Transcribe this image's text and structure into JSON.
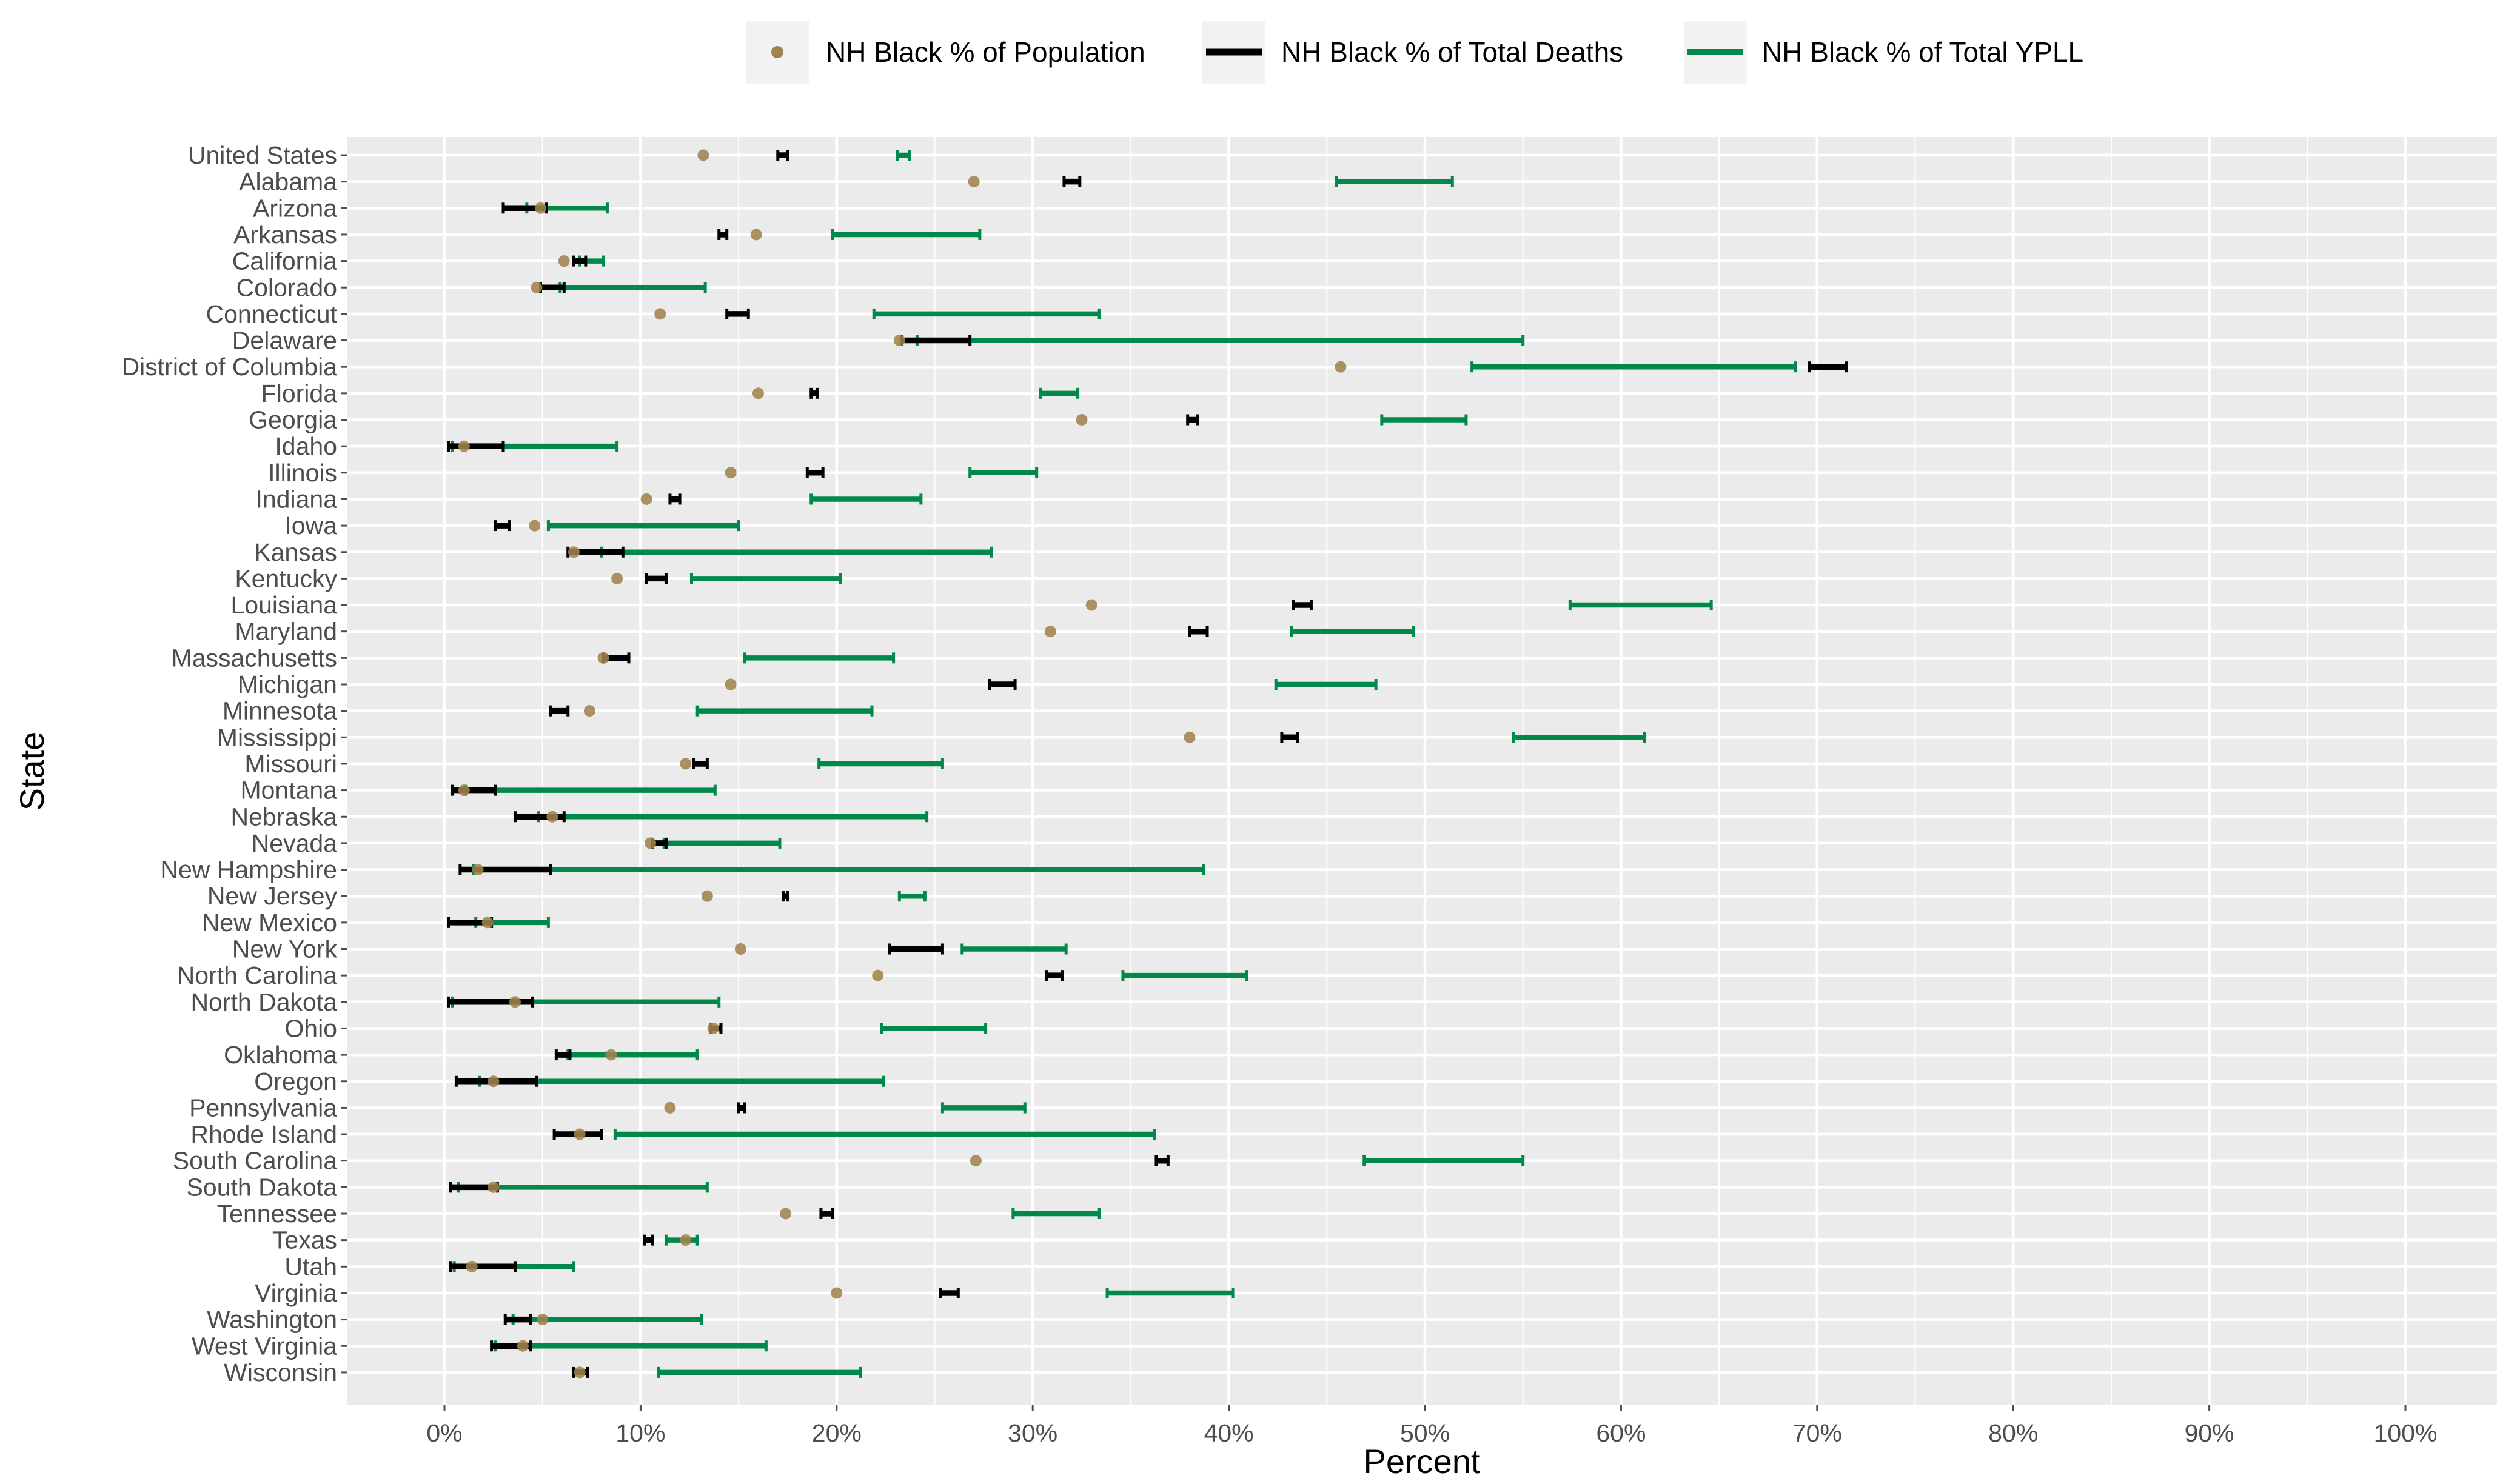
{
  "colors": {
    "population": "#a0834d",
    "deaths": "#000000",
    "ypll": "#00894a",
    "panel": "#ebebeb",
    "grid": "#ffffff",
    "tick": "#4d4d4d"
  },
  "chart_data": {
    "type": "range-dot",
    "xlabel": "Percent",
    "ylabel": "State",
    "xlim": [
      0,
      100
    ],
    "x_ticks": [
      "0%",
      "10%",
      "20%",
      "30%",
      "40%",
      "50%",
      "60%",
      "70%",
      "80%",
      "90%",
      "100%"
    ],
    "legend": {
      "position": "top",
      "entries": [
        {
          "key": "population",
          "label": "NH Black % of Population"
        },
        {
          "key": "deaths",
          "label": "NH Black % of Total Deaths"
        },
        {
          "key": "ypll",
          "label": "NH Black % of Total YPLL"
        }
      ]
    },
    "series": [
      {
        "state": "United States",
        "population": 13.2,
        "deaths": [
          17.0,
          17.5
        ],
        "ypll": [
          23.1,
          23.7
        ]
      },
      {
        "state": "Alabama",
        "population": 27.0,
        "deaths": [
          31.6,
          32.4
        ],
        "ypll": [
          45.5,
          51.4
        ]
      },
      {
        "state": "Arizona",
        "population": 4.9,
        "deaths": [
          3.0,
          5.2
        ],
        "ypll": [
          4.2,
          8.3
        ]
      },
      {
        "state": "Arkansas",
        "population": 15.9,
        "deaths": [
          14.0,
          14.4
        ],
        "ypll": [
          19.8,
          27.3
        ]
      },
      {
        "state": "California",
        "population": 6.1,
        "deaths": [
          6.6,
          7.2
        ],
        "ypll": [
          6.9,
          8.1
        ]
      },
      {
        "state": "Colorado",
        "population": 4.7,
        "deaths": [
          4.9,
          6.1
        ],
        "ypll": [
          5.9,
          13.3
        ]
      },
      {
        "state": "Connecticut",
        "population": 11.0,
        "deaths": [
          14.4,
          15.5
        ],
        "ypll": [
          21.9,
          33.4
        ]
      },
      {
        "state": "Delaware",
        "population": 23.2,
        "deaths": [
          23.3,
          26.8
        ],
        "ypll": [
          24.1,
          55.0
        ]
      },
      {
        "state": "District of Columbia",
        "population": 45.7,
        "deaths": [
          69.6,
          71.5
        ],
        "ypll": [
          52.4,
          68.9
        ]
      },
      {
        "state": "Florida",
        "population": 16.0,
        "deaths": [
          18.7,
          19.0
        ],
        "ypll": [
          30.4,
          32.3
        ]
      },
      {
        "state": "Georgia",
        "population": 32.5,
        "deaths": [
          37.9,
          38.4
        ],
        "ypll": [
          47.8,
          52.1
        ]
      },
      {
        "state": "Idaho",
        "population": 1.0,
        "deaths": [
          0.2,
          3.0
        ],
        "ypll": [
          0.4,
          8.8
        ]
      },
      {
        "state": "Illinois",
        "population": 14.6,
        "deaths": [
          18.5,
          19.3
        ],
        "ypll": [
          26.8,
          30.2
        ]
      },
      {
        "state": "Indiana",
        "population": 10.3,
        "deaths": [
          11.5,
          12.0
        ],
        "ypll": [
          18.7,
          24.3
        ]
      },
      {
        "state": "Iowa",
        "population": 4.6,
        "deaths": [
          2.6,
          3.3
        ],
        "ypll": [
          5.3,
          15.0
        ]
      },
      {
        "state": "Kansas",
        "population": 6.6,
        "deaths": [
          6.3,
          9.1
        ],
        "ypll": [
          8.0,
          27.9
        ]
      },
      {
        "state": "Kentucky",
        "population": 8.8,
        "deaths": [
          10.3,
          11.3
        ],
        "ypll": [
          12.6,
          20.2
        ]
      },
      {
        "state": "Louisiana",
        "population": 33.0,
        "deaths": [
          43.3,
          44.2
        ],
        "ypll": [
          57.4,
          64.6
        ]
      },
      {
        "state": "Maryland",
        "population": 30.9,
        "deaths": [
          38.0,
          38.9
        ],
        "ypll": [
          43.2,
          49.4
        ]
      },
      {
        "state": "Massachusetts",
        "population": 8.1,
        "deaths": [
          8.1,
          9.4
        ],
        "ypll": [
          15.3,
          22.9
        ]
      },
      {
        "state": "Michigan",
        "population": 14.6,
        "deaths": [
          27.8,
          29.1
        ],
        "ypll": [
          42.4,
          47.5
        ]
      },
      {
        "state": "Minnesota",
        "population": 7.4,
        "deaths": [
          5.4,
          6.3
        ],
        "ypll": [
          12.9,
          21.8
        ]
      },
      {
        "state": "Mississippi",
        "population": 38.0,
        "deaths": [
          42.7,
          43.5
        ],
        "ypll": [
          54.5,
          61.2
        ]
      },
      {
        "state": "Missouri",
        "population": 12.3,
        "deaths": [
          12.7,
          13.4
        ],
        "ypll": [
          19.1,
          25.4
        ]
      },
      {
        "state": "Montana",
        "population": 1.0,
        "deaths": [
          0.4,
          2.6
        ],
        "ypll": [
          1.1,
          13.8
        ]
      },
      {
        "state": "Nebraska",
        "population": 5.5,
        "deaths": [
          3.6,
          6.1
        ],
        "ypll": [
          4.8,
          24.6
        ]
      },
      {
        "state": "Nevada",
        "population": 10.5,
        "deaths": [
          10.6,
          11.3
        ],
        "ypll": [
          11.2,
          17.1
        ]
      },
      {
        "state": "New Hampshire",
        "population": 1.7,
        "deaths": [
          0.8,
          5.4
        ],
        "ypll": [
          1.5,
          38.7
        ]
      },
      {
        "state": "New Jersey",
        "population": 13.4,
        "deaths": [
          17.3,
          17.5
        ],
        "ypll": [
          23.2,
          24.5
        ]
      },
      {
        "state": "New Mexico",
        "population": 2.2,
        "deaths": [
          0.2,
          2.4
        ],
        "ypll": [
          1.6,
          5.3
        ]
      },
      {
        "state": "New York",
        "population": 15.1,
        "deaths": [
          22.7,
          25.4
        ],
        "ypll": [
          26.4,
          31.7
        ]
      },
      {
        "state": "North Carolina",
        "population": 22.1,
        "deaths": [
          30.7,
          31.5
        ],
        "ypll": [
          34.6,
          40.9
        ]
      },
      {
        "state": "North Dakota",
        "population": 3.6,
        "deaths": [
          0.2,
          4.5
        ],
        "ypll": [
          0.4,
          14.0
        ]
      },
      {
        "state": "Ohio",
        "population": 13.7,
        "deaths": [
          13.6,
          14.1
        ],
        "ypll": [
          22.3,
          27.6
        ]
      },
      {
        "state": "Oklahoma",
        "population": 8.5,
        "deaths": [
          5.7,
          6.4
        ],
        "ypll": [
          6.3,
          12.9
        ]
      },
      {
        "state": "Oregon",
        "population": 2.5,
        "deaths": [
          0.6,
          4.7
        ],
        "ypll": [
          1.8,
          22.4
        ]
      },
      {
        "state": "Pennsylvania",
        "population": 11.5,
        "deaths": [
          15.0,
          15.3
        ],
        "ypll": [
          25.4,
          29.6
        ]
      },
      {
        "state": "Rhode Island",
        "population": 6.9,
        "deaths": [
          5.6,
          8.0
        ],
        "ypll": [
          8.7,
          36.2
        ]
      },
      {
        "state": "South Carolina",
        "population": 27.1,
        "deaths": [
          36.3,
          36.9
        ],
        "ypll": [
          46.9,
          55.0
        ]
      },
      {
        "state": "South Dakota",
        "population": 2.5,
        "deaths": [
          0.3,
          2.7
        ],
        "ypll": [
          0.7,
          13.4
        ]
      },
      {
        "state": "Tennessee",
        "population": 17.4,
        "deaths": [
          19.2,
          19.8
        ],
        "ypll": [
          29.0,
          33.4
        ]
      },
      {
        "state": "Texas",
        "population": 12.3,
        "deaths": [
          10.2,
          10.6
        ],
        "ypll": [
          11.3,
          12.9
        ]
      },
      {
        "state": "Utah",
        "population": 1.4,
        "deaths": [
          0.3,
          3.6
        ],
        "ypll": [
          0.5,
          6.6
        ]
      },
      {
        "state": "Virginia",
        "population": 20.0,
        "deaths": [
          25.3,
          26.2
        ],
        "ypll": [
          33.8,
          40.2
        ]
      },
      {
        "state": "Washington",
        "population": 5.0,
        "deaths": [
          3.1,
          4.4
        ],
        "ypll": [
          3.5,
          13.1
        ]
      },
      {
        "state": "West Virginia",
        "population": 4.0,
        "deaths": [
          2.4,
          4.4
        ],
        "ypll": [
          2.6,
          16.4
        ]
      },
      {
        "state": "Wisconsin",
        "population": 6.9,
        "deaths": [
          6.6,
          7.3
        ],
        "ypll": [
          10.9,
          21.2
        ]
      }
    ]
  }
}
